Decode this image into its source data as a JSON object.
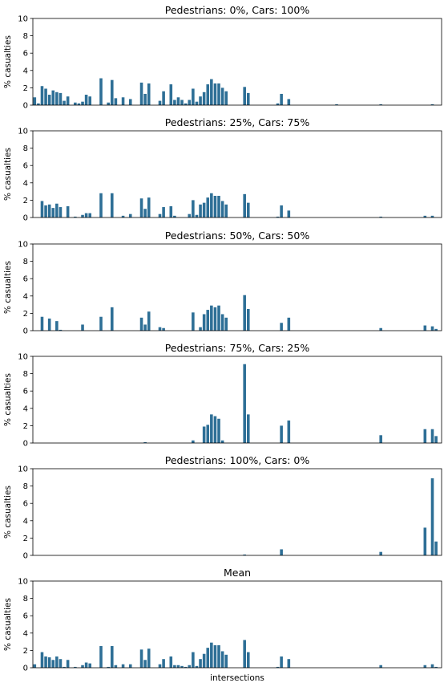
{
  "figure": {
    "x_label": "intersections",
    "bar_color": "#2e6f96"
  },
  "chart_data": [
    {
      "type": "bar",
      "title": "Pedestrians: 0%, Cars: 100%",
      "ylabel": "% casualties",
      "ylim": [
        0,
        10
      ],
      "yticks": [
        0,
        2,
        4,
        6,
        8,
        10
      ],
      "values": [
        0.9,
        0.2,
        2.2,
        1.9,
        1.2,
        1.7,
        1.5,
        1.4,
        0.5,
        1.0,
        0,
        0.3,
        0.2,
        0.4,
        1.2,
        1.0,
        0,
        0,
        3.1,
        0,
        0.3,
        2.9,
        0.8,
        0,
        0.9,
        0,
        0.7,
        0,
        0,
        2.6,
        1.3,
        2.5,
        0,
        0,
        0.5,
        1.6,
        0,
        2.4,
        0.6,
        0.9,
        0.6,
        0.2,
        0.6,
        1.9,
        0.4,
        1.0,
        1.5,
        2.4,
        3.0,
        2.5,
        2.5,
        2.0,
        1.6,
        0,
        0,
        0,
        0,
        2.1,
        1.4,
        0,
        0,
        0,
        0,
        0,
        0,
        0,
        0.2,
        1.3,
        0,
        0.7,
        0,
        0,
        0,
        0,
        0,
        0,
        0,
        0,
        0,
        0,
        0,
        0,
        0.1,
        0,
        0,
        0,
        0,
        0,
        0,
        0,
        0,
        0,
        0,
        0,
        0.1,
        0,
        0,
        0,
        0,
        0,
        0,
        0,
        0,
        0,
        0,
        0,
        0,
        0,
        0.1,
        0,
        0
      ]
    },
    {
      "type": "bar",
      "title": "Pedestrians: 25%, Cars: 75%",
      "ylabel": "% casualties",
      "ylim": [
        0,
        10
      ],
      "yticks": [
        0,
        2,
        4,
        6,
        8,
        10
      ],
      "values": [
        0,
        0,
        1.9,
        1.4,
        1.5,
        1.1,
        1.6,
        1.2,
        0,
        1.3,
        0,
        0.1,
        0,
        0.3,
        0.5,
        0.5,
        0,
        0,
        2.8,
        0,
        0,
        2.8,
        0,
        0,
        0.2,
        0,
        0.4,
        0,
        0,
        2.2,
        1.0,
        2.3,
        0,
        0,
        0.4,
        1.2,
        0,
        1.3,
        0.2,
        0,
        0,
        0,
        0.4,
        2.0,
        0.3,
        1.5,
        1.7,
        2.3,
        2.8,
        2.5,
        2.5,
        1.9,
        1.5,
        0,
        0,
        0,
        0,
        2.7,
        1.7,
        0,
        0,
        0,
        0,
        0,
        0,
        0,
        0.1,
        1.4,
        0,
        0.8,
        0,
        0,
        0,
        0,
        0,
        0,
        0,
        0,
        0,
        0,
        0,
        0,
        0,
        0,
        0,
        0,
        0,
        0,
        0,
        0,
        0,
        0,
        0,
        0,
        0.1,
        0,
        0,
        0,
        0,
        0,
        0,
        0,
        0,
        0,
        0,
        0,
        0.2,
        0,
        0.2,
        0,
        0
      ]
    },
    {
      "type": "bar",
      "title": "Pedestrians: 50%, Cars: 50%",
      "ylabel": "% casualties",
      "ylim": [
        0,
        10
      ],
      "yticks": [
        0,
        2,
        4,
        6,
        8,
        10
      ],
      "values": [
        0,
        0,
        1.6,
        0,
        1.4,
        0,
        1.1,
        0.1,
        0,
        0,
        0,
        0,
        0,
        0.7,
        0,
        0,
        0,
        0,
        1.6,
        0,
        0,
        2.7,
        0,
        0,
        0,
        0,
        0,
        0,
        0,
        1.5,
        0.7,
        2.2,
        0,
        0,
        0.4,
        0.3,
        0,
        0,
        0,
        0,
        0,
        0,
        0,
        2.1,
        0,
        0.4,
        1.9,
        2.4,
        2.9,
        2.7,
        2.9,
        1.9,
        1.5,
        0,
        0,
        0,
        0,
        4.1,
        2.5,
        0,
        0,
        0,
        0,
        0,
        0,
        0,
        0,
        0.9,
        0,
        1.5,
        0,
        0,
        0,
        0,
        0,
        0,
        0,
        0,
        0,
        0,
        0,
        0,
        0,
        0,
        0,
        0,
        0,
        0,
        0,
        0,
        0,
        0,
        0,
        0,
        0.3,
        0,
        0,
        0,
        0,
        0,
        0,
        0,
        0,
        0,
        0,
        0,
        0.6,
        0,
        0.5,
        0.2,
        0
      ]
    },
    {
      "type": "bar",
      "title": "Pedestrians: 75%, Cars: 25%",
      "ylabel": "% casualties",
      "ylim": [
        0,
        10
      ],
      "yticks": [
        0,
        2,
        4,
        6,
        8,
        10
      ],
      "values": [
        0,
        0,
        0,
        0,
        0,
        0,
        0,
        0,
        0,
        0,
        0,
        0,
        0,
        0,
        0,
        0,
        0,
        0,
        0,
        0,
        0,
        0,
        0,
        0,
        0,
        0,
        0,
        0,
        0,
        0,
        0.1,
        0,
        0,
        0,
        0,
        0,
        0,
        0,
        0,
        0,
        0,
        0,
        0,
        0.3,
        0,
        0,
        1.9,
        2.1,
        3.3,
        3.1,
        2.8,
        0.3,
        0,
        0,
        0,
        0,
        0,
        9.1,
        3.3,
        0,
        0,
        0,
        0,
        0,
        0,
        0,
        0,
        2.0,
        0,
        2.6,
        0,
        0,
        0,
        0,
        0,
        0,
        0,
        0,
        0,
        0,
        0,
        0,
        0,
        0,
        0,
        0,
        0,
        0,
        0,
        0,
        0,
        0,
        0,
        0,
        0.9,
        0,
        0,
        0,
        0,
        0,
        0,
        0,
        0,
        0,
        0,
        0,
        1.6,
        0,
        1.6,
        0.8,
        0
      ]
    },
    {
      "type": "bar",
      "title": "Pedestrians: 100%, Cars: 0%",
      "ylabel": "% casualties",
      "ylim": [
        0,
        10
      ],
      "yticks": [
        0,
        2,
        4,
        6,
        8,
        10
      ],
      "values": [
        0,
        0,
        0,
        0,
        0,
        0,
        0,
        0,
        0,
        0,
        0,
        0,
        0,
        0,
        0,
        0,
        0,
        0,
        0,
        0,
        0,
        0,
        0,
        0,
        0,
        0,
        0,
        0,
        0,
        0,
        0,
        0,
        0,
        0,
        0,
        0,
        0,
        0,
        0,
        0,
        0,
        0,
        0,
        0,
        0,
        0,
        0,
        0,
        0,
        0,
        0,
        0,
        0,
        0,
        0,
        0,
        0,
        0.1,
        0,
        0,
        0,
        0,
        0,
        0,
        0,
        0,
        0,
        0.7,
        0,
        0,
        0,
        0,
        0,
        0,
        0,
        0,
        0,
        0,
        0,
        0,
        0,
        0,
        0,
        0,
        0,
        0,
        0,
        0,
        0,
        0,
        0,
        0,
        0,
        0,
        0.4,
        0,
        0,
        0,
        0,
        0,
        0,
        0,
        0,
        0,
        0,
        0,
        3.2,
        0,
        8.9,
        1.6,
        0
      ]
    },
    {
      "type": "bar",
      "title": "Mean",
      "ylabel": "% casualties",
      "ylim": [
        0,
        10
      ],
      "yticks": [
        0,
        2,
        4,
        6,
        8,
        10
      ],
      "values": [
        0.4,
        0,
        1.8,
        1.3,
        1.2,
        0.9,
        1.3,
        1.0,
        0.1,
        0.9,
        0,
        0.1,
        0,
        0.3,
        0.6,
        0.5,
        0,
        0,
        2.5,
        0,
        0.1,
        2.5,
        0.3,
        0,
        0.4,
        0,
        0.4,
        0,
        0,
        2.1,
        0.9,
        2.2,
        0,
        0,
        0.4,
        1.0,
        0,
        1.3,
        0.3,
        0.3,
        0.2,
        0.1,
        0.3,
        1.8,
        0.2,
        1.0,
        1.6,
        2.3,
        2.9,
        2.6,
        2.6,
        1.9,
        1.5,
        0,
        0,
        0,
        0,
        3.2,
        1.8,
        0,
        0,
        0,
        0,
        0,
        0,
        0,
        0.1,
        1.3,
        0,
        1.0,
        0,
        0,
        0,
        0,
        0,
        0,
        0,
        0,
        0,
        0,
        0,
        0,
        0,
        0,
        0,
        0,
        0,
        0,
        0,
        0,
        0,
        0,
        0,
        0,
        0.3,
        0,
        0,
        0,
        0,
        0,
        0,
        0,
        0,
        0,
        0,
        0,
        0.3,
        0,
        0.4,
        0.1,
        0
      ]
    }
  ]
}
